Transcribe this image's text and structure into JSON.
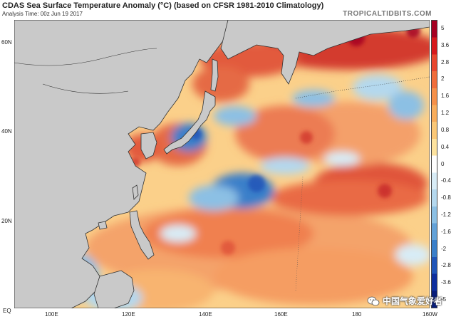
{
  "header": {
    "title": "CDAS Sea Surface Temperature Anomaly (°C) (based on CFSR 1981-2010 Climatology)",
    "subtitle": "Analysis Time: 00z Jun 19 2017",
    "brand": "TROPICALTIDBITS.COM"
  },
  "axes": {
    "lat_ticks": [
      "60N",
      "40N",
      "20N",
      "EQ"
    ],
    "lon_ticks": [
      "100E",
      "120E",
      "140E",
      "160E",
      "180",
      "160W"
    ]
  },
  "colorbar": {
    "labels": [
      "5",
      "3.6",
      "2.8",
      "2",
      "1.6",
      "1.2",
      "0.8",
      "0.4",
      "0",
      "-0.4",
      "-0.8",
      "-1.2",
      "-1.6",
      "-2",
      "-2.8",
      "-3.6",
      "-5"
    ],
    "colors": [
      "#a50021",
      "#d7191c",
      "#e8472f",
      "#f06d3b",
      "#f5904a",
      "#f8ad5c",
      "#fbc877",
      "#fde39f",
      "#ffffff",
      "#d8ecf6",
      "#b4d8ee",
      "#8cc0e4",
      "#63a2d8",
      "#3a7fc9",
      "#2055b8",
      "#0d2e9e",
      "#081d7a"
    ]
  },
  "watermark": {
    "text": "中国气象爱好者"
  },
  "legend_icon": "wechat-icon"
}
